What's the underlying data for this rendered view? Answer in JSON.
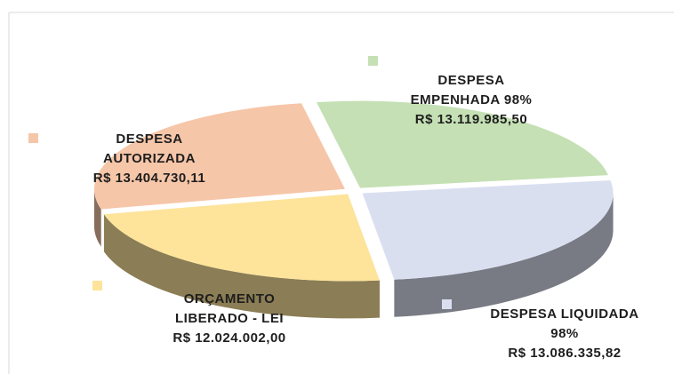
{
  "chart_data": {
    "type": "pie",
    "categories": [
      "DESPESA EMPENHADA 98%",
      "DESPESA LIQUIDADA 98%",
      "ORÇAMENTO LIBERADO - LEI",
      "DESPESA AUTORIZADA"
    ],
    "values": [
      13119985.5,
      13086335.82,
      12024002.0,
      13404730.11
    ],
    "value_labels": [
      "R$ 13.119.985,50",
      "R$ 13.086.335,82",
      "R$ 12.024.002,00",
      "R$ 13.404.730,11"
    ],
    "colors": [
      "#c5e0b4",
      "#dadff0",
      "#fde49a",
      "#f6c6a8"
    ]
  }
}
